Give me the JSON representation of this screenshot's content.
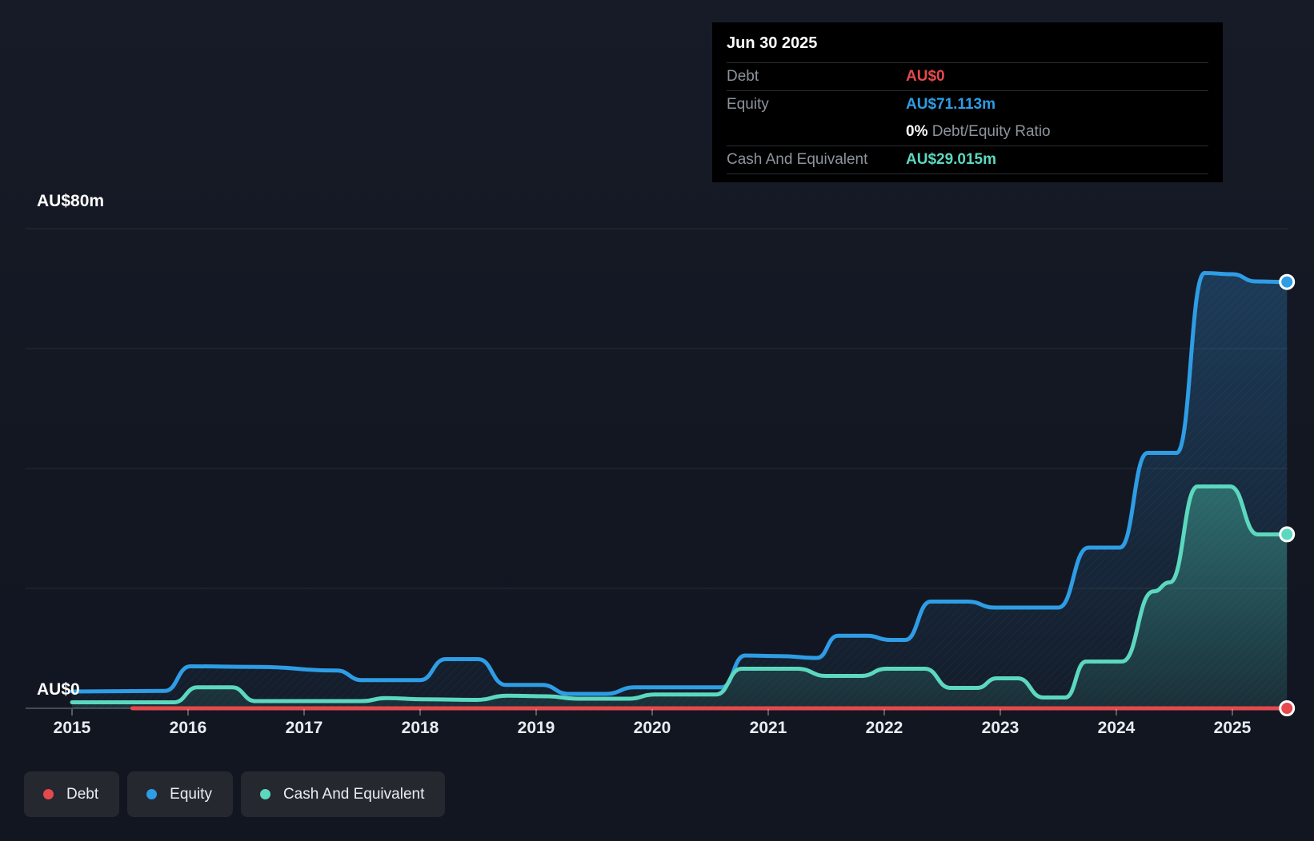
{
  "tooltip": {
    "date": "Jun 30 2025",
    "debt_label": "Debt",
    "debt_value": "AU$0",
    "equity_label": "Equity",
    "equity_value": "AU$71.113m",
    "ratio_value": "0%",
    "ratio_label": "Debt/Equity Ratio",
    "cash_label": "Cash And Equivalent",
    "cash_value": "AU$29.015m"
  },
  "y_axis": {
    "top_label": "AU$80m",
    "zero_label": "AU$0"
  },
  "colors": {
    "debt": "#e5494d",
    "equity": "#2e9de5",
    "cash": "#5cd8bf",
    "background": "#131722",
    "tooltip_background": "#000000",
    "legend_pill": "#25282f"
  },
  "legend": [
    {
      "key": "debt",
      "label": "Debt"
    },
    {
      "key": "equity",
      "label": "Equity"
    },
    {
      "key": "cash",
      "label": "Cash And Equivalent"
    }
  ],
  "chart_data": {
    "type": "area",
    "title": "",
    "ylabel": "AU$m",
    "ylim": [
      0,
      80
    ],
    "y_gridlines": [
      0,
      20,
      40,
      60,
      80
    ],
    "x_ticks": [
      2015,
      2016,
      2017,
      2018,
      2019,
      2020,
      2021,
      2022,
      2023,
      2024,
      2025
    ],
    "x_end": 2025.47,
    "grid": true,
    "legend_position": "bottom",
    "series": [
      {
        "key": "equity",
        "name": "Equity",
        "unit": "AU$m",
        "end_value": 71.113,
        "fill": true,
        "points": [
          [
            2015.0,
            2.8
          ],
          [
            2015.8,
            2.9
          ],
          [
            2016.02,
            7.0
          ],
          [
            2016.6,
            6.9
          ],
          [
            2017.28,
            6.3
          ],
          [
            2017.5,
            4.7
          ],
          [
            2018.0,
            4.7
          ],
          [
            2018.22,
            8.2
          ],
          [
            2018.5,
            8.2
          ],
          [
            2018.74,
            3.9
          ],
          [
            2019.05,
            3.9
          ],
          [
            2019.28,
            2.4
          ],
          [
            2019.6,
            2.4
          ],
          [
            2019.85,
            3.5
          ],
          [
            2020.6,
            3.5
          ],
          [
            2020.8,
            8.8
          ],
          [
            2021.1,
            8.7
          ],
          [
            2021.42,
            8.4
          ],
          [
            2021.6,
            12.1
          ],
          [
            2021.85,
            12.1
          ],
          [
            2022.05,
            11.4
          ],
          [
            2022.18,
            11.4
          ],
          [
            2022.4,
            17.8
          ],
          [
            2022.72,
            17.8
          ],
          [
            2022.95,
            16.8
          ],
          [
            2023.5,
            16.8
          ],
          [
            2023.76,
            26.8
          ],
          [
            2024.03,
            26.8
          ],
          [
            2024.27,
            42.6
          ],
          [
            2024.52,
            42.6
          ],
          [
            2024.76,
            72.6
          ],
          [
            2025.0,
            72.4
          ],
          [
            2025.2,
            71.2
          ],
          [
            2025.47,
            71.113
          ]
        ]
      },
      {
        "key": "cash",
        "name": "Cash And Equivalent",
        "unit": "AU$m",
        "end_value": 29.015,
        "fill": true,
        "points": [
          [
            2015.0,
            1.0
          ],
          [
            2015.88,
            1.0
          ],
          [
            2016.08,
            3.5
          ],
          [
            2016.38,
            3.5
          ],
          [
            2016.58,
            1.2
          ],
          [
            2017.5,
            1.2
          ],
          [
            2017.7,
            1.7
          ],
          [
            2018.05,
            1.5
          ],
          [
            2018.48,
            1.4
          ],
          [
            2018.75,
            2.1
          ],
          [
            2019.1,
            2.0
          ],
          [
            2019.35,
            1.6
          ],
          [
            2019.8,
            1.6
          ],
          [
            2020.02,
            2.3
          ],
          [
            2020.55,
            2.3
          ],
          [
            2020.77,
            6.6
          ],
          [
            2021.25,
            6.6
          ],
          [
            2021.5,
            5.4
          ],
          [
            2021.8,
            5.4
          ],
          [
            2022.02,
            6.6
          ],
          [
            2022.35,
            6.6
          ],
          [
            2022.57,
            3.4
          ],
          [
            2022.8,
            3.4
          ],
          [
            2022.97,
            5.0
          ],
          [
            2023.15,
            5.0
          ],
          [
            2023.37,
            1.8
          ],
          [
            2023.56,
            1.8
          ],
          [
            2023.74,
            7.8
          ],
          [
            2024.05,
            7.8
          ],
          [
            2024.32,
            19.5
          ],
          [
            2024.46,
            21.0
          ],
          [
            2024.7,
            37.0
          ],
          [
            2024.98,
            37.0
          ],
          [
            2025.22,
            29.0
          ],
          [
            2025.47,
            29.015
          ]
        ]
      },
      {
        "key": "debt",
        "name": "Debt",
        "unit": "AU$m",
        "end_value": 0,
        "fill": false,
        "points": [
          [
            2015.52,
            0
          ],
          [
            2025.47,
            0
          ]
        ]
      }
    ]
  }
}
